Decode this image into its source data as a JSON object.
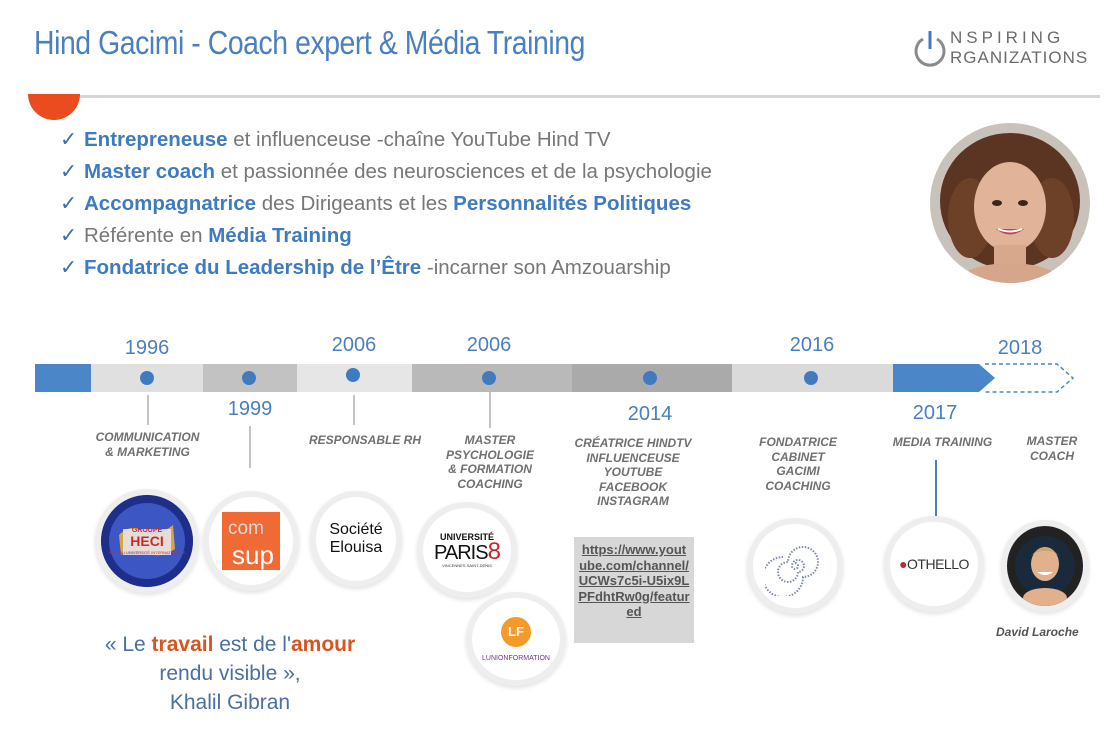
{
  "header": {
    "title": "Hind Gacimi - Coach expert & Média Training",
    "logo_line1": "NSPIRING",
    "logo_line2": "RGANIZATIONS"
  },
  "bullets": [
    {
      "bold": "Entrepreneuse",
      "rest": " et influenceuse -chaîne YouTube Hind TV"
    },
    {
      "bold": "Master coach",
      "rest": " et passionnée des neurosciences et de la psychologie"
    },
    {
      "bold": "Accompagnatrice",
      "mid": " des Dirigeants et les ",
      "bold2": "Personnalités Politiques"
    },
    {
      "pre": "Référente en ",
      "bold": "Média Training"
    },
    {
      "bold": "Fondatrice du Leadership de l’Être",
      "rest": " -incarner son Amzouarship"
    }
  ],
  "check_glyph": "✓",
  "timeline": {
    "years": [
      "1996",
      "1999",
      "2006",
      "2006",
      "2014",
      "2016",
      "2017",
      "2018"
    ],
    "roles": {
      "r1996": [
        "COMMUNICATION",
        "& MARKETING"
      ],
      "r2006a": [
        "RESPONSABLE RH"
      ],
      "r2006b": [
        "MASTER",
        "PSYCHOLOGIE",
        "& FORMATION",
        "COACHING"
      ],
      "r2014": [
        "CRÉATRICE HINDTV",
        "INFLUENCEUSE",
        "YOUTUBE",
        "FACEBOOK",
        "INSTAGRAM"
      ],
      "r2016": [
        "FONDATRICE",
        "CABINET",
        "GACIMI",
        "COACHING"
      ],
      "r2017": [
        "MEDIA TRAINING"
      ],
      "r2018": [
        "MASTER",
        "COACH"
      ]
    }
  },
  "logos": {
    "heci_top": "GROUPE",
    "heci_main": "HECI",
    "heci_sub": "RÉSEAU UNIVERSITÉ INTERNATIONALE",
    "comsup_1": "com",
    "comsup_2": "sup",
    "elouisa_1": "Société",
    "elouisa_2": "Elouisa",
    "paris8_1": "UNIVERSITÉ",
    "paris8_2": "PARIS",
    "paris8_3": "8",
    "paris8_4": "VINCENNES-SAINT-DENIS",
    "lunion_mark": "LF",
    "lunion_name": "LUNIONFORMATION",
    "othello": "OTHELLO"
  },
  "youtube_link": "https://www.youtube.com/channel/UCWs7c5i-U5ix9LPFdhtRw0g/featured",
  "quote": {
    "open": "« Le ",
    "w1": "travail",
    "mid": " est de l'",
    "w2": "amour",
    "close": " rendu visible »,",
    "author": "Khalil Gibran"
  },
  "person_caption": "David Laroche",
  "colors": {
    "accent": "#ea4b1f",
    "blue": "#3f7bc0",
    "title": "#4a7fc1"
  }
}
